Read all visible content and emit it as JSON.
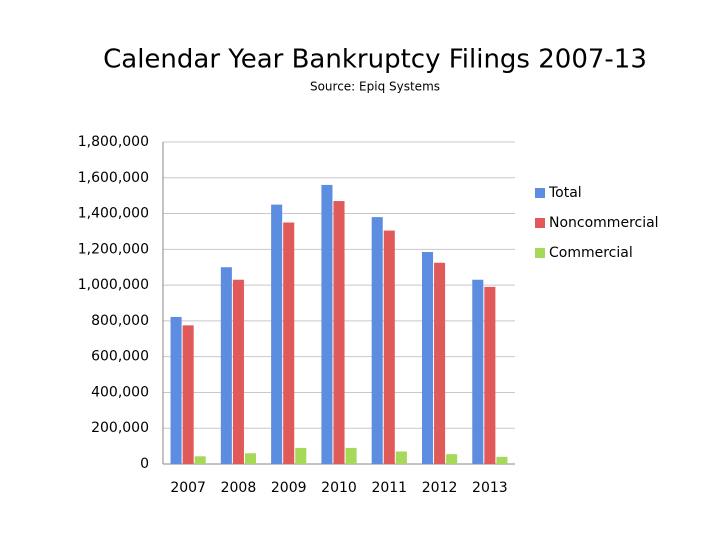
{
  "chart_data": {
    "type": "bar",
    "title": "Calendar Year Bankruptcy Filings 2007-13",
    "subtitle": "Source: Epiq Systems",
    "categories": [
      "2007",
      "2008",
      "2009",
      "2010",
      "2011",
      "2012",
      "2013"
    ],
    "series": [
      {
        "name": "Total",
        "color": "#5d8de0",
        "values": [
          822000,
          1100000,
          1450000,
          1560000,
          1380000,
          1185000,
          1030000
        ]
      },
      {
        "name": "Noncommercial",
        "color": "#e05a5a",
        "values": [
          775000,
          1030000,
          1350000,
          1470000,
          1305000,
          1125000,
          990000
        ]
      },
      {
        "name": "Commercial",
        "color": "#a6d85a",
        "values": [
          43000,
          60000,
          90000,
          90000,
          70000,
          55000,
          40000
        ]
      }
    ],
    "ylim": [
      0,
      1800000
    ],
    "yticks": [
      0,
      {
        "value": 200000,
        "label": "200,000"
      },
      {
        "value": 400000,
        "label": "400,000"
      },
      {
        "value": 600000,
        "label": "600,000"
      },
      {
        "value": 800000,
        "label": "800,000"
      },
      {
        "value": 1000000,
        "label": "1,000,000"
      },
      {
        "value": 1200000,
        "label": "1,200,000"
      },
      {
        "value": 1400000,
        "label": "1,400,000"
      },
      {
        "value": 1600000,
        "label": "1,600,000"
      },
      {
        "value": 1800000,
        "label": "1,800,000"
      }
    ],
    "grid": true,
    "legend": "right"
  }
}
